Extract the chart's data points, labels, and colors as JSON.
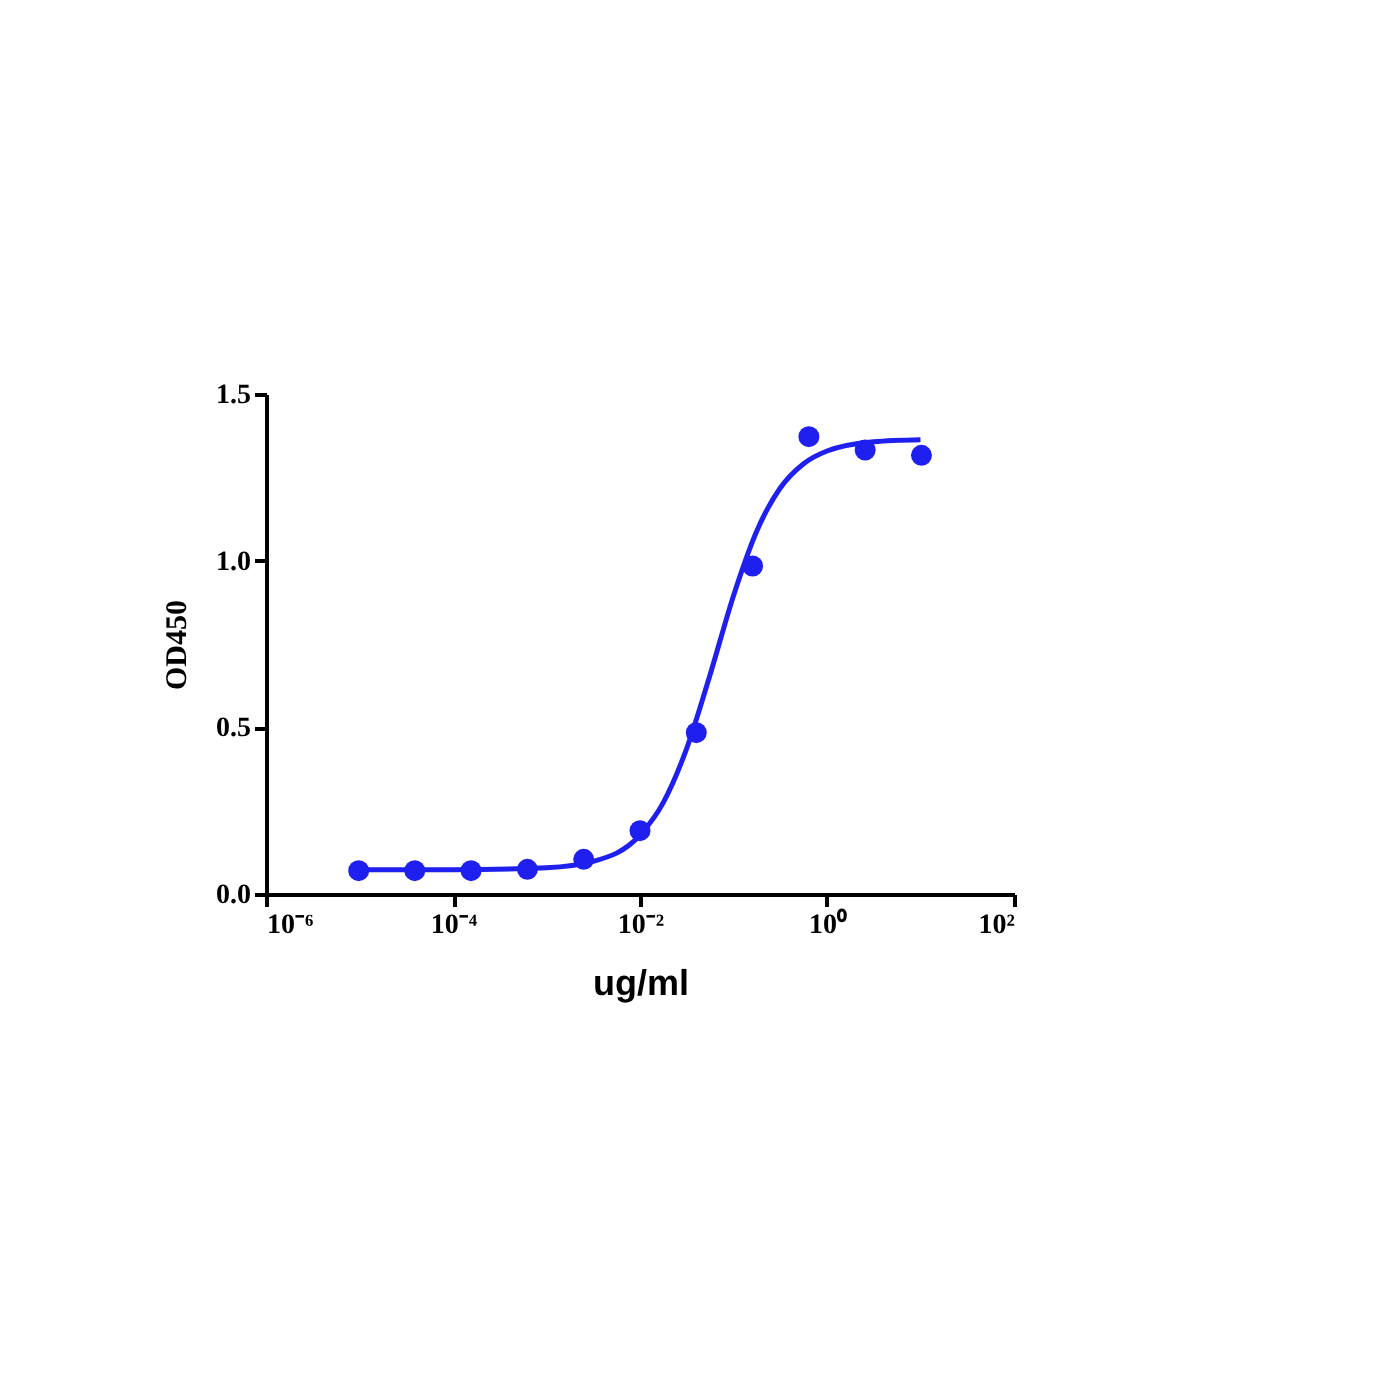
{
  "chart_data": {
    "type": "scatter",
    "xlabel": "ug/ml",
    "ylabel": "OD450",
    "log": "x",
    "grid": false,
    "xlim": [
      1e-06,
      100
    ],
    "ylim": [
      0,
      1.5
    ],
    "xticks": [
      {
        "value": 1e-06,
        "label": "10⁻⁶"
      },
      {
        "value": 0.0001,
        "label": "10⁻⁴"
      },
      {
        "value": 0.01,
        "label": "10⁻²"
      },
      {
        "value": 1,
        "label": "10⁰"
      },
      {
        "value": 100,
        "label": "10²"
      }
    ],
    "yticks": [
      {
        "value": 0,
        "label": "0.0"
      },
      {
        "value": 0.5,
        "label": "0.5"
      },
      {
        "value": 1,
        "label": "1.0"
      },
      {
        "value": 1.5,
        "label": "1.5"
      }
    ],
    "series": [
      {
        "marker": "circle",
        "color": "#1f1fef",
        "x": [
          9.8e-06,
          3.9e-05,
          0.000156,
          0.000625,
          0.0025,
          0.01,
          0.04,
          0.16,
          0.64,
          2.56,
          10.24
        ],
        "values": [
          0.07,
          0.07,
          0.07,
          0.074,
          0.104,
          0.19,
          0.484,
          0.984,
          1.372,
          1.332,
          1.316
        ]
      },
      {
        "type": "line",
        "color": "#1f1fef",
        "x": [
          1e-05,
          0.0001,
          0.001,
          0.00316,
          0.01,
          0.0178,
          0.0316,
          0.0562,
          0.1,
          0.178,
          0.316,
          0.562,
          1,
          3.16,
          10
        ],
        "values": [
          0.073,
          0.073,
          0.079,
          0.098,
          0.177,
          0.275,
          0.437,
          0.658,
          0.895,
          1.09,
          1.218,
          1.291,
          1.329,
          1.357,
          1.363
        ]
      }
    ]
  }
}
